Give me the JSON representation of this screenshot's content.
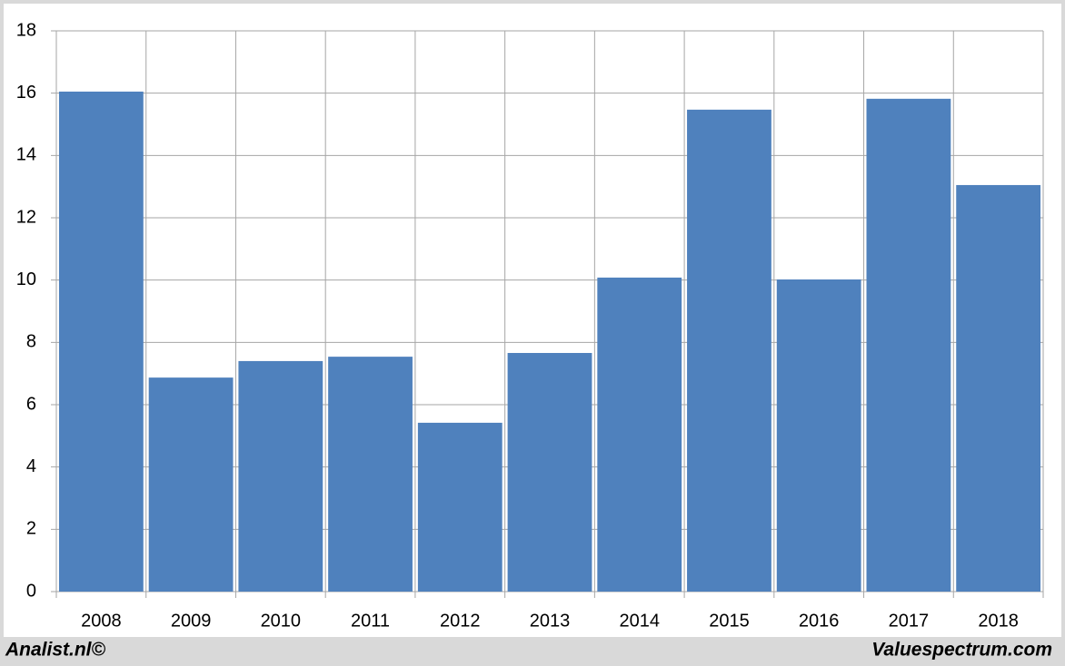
{
  "chart_data": {
    "type": "bar",
    "categories": [
      "2008",
      "2009",
      "2010",
      "2011",
      "2012",
      "2013",
      "2014",
      "2015",
      "2016",
      "2017",
      "2018"
    ],
    "values": [
      16.05,
      6.87,
      7.4,
      7.54,
      5.42,
      7.66,
      10.08,
      15.47,
      10.02,
      15.82,
      13.05
    ],
    "color": "#4f81bd",
    "ylim": [
      0,
      18
    ],
    "yticks": [
      0,
      2,
      4,
      6,
      8,
      10,
      12,
      14,
      16,
      18
    ],
    "grid": true
  },
  "footer": {
    "left": "Analist.nl©",
    "right": "Valuespectrum.com"
  }
}
